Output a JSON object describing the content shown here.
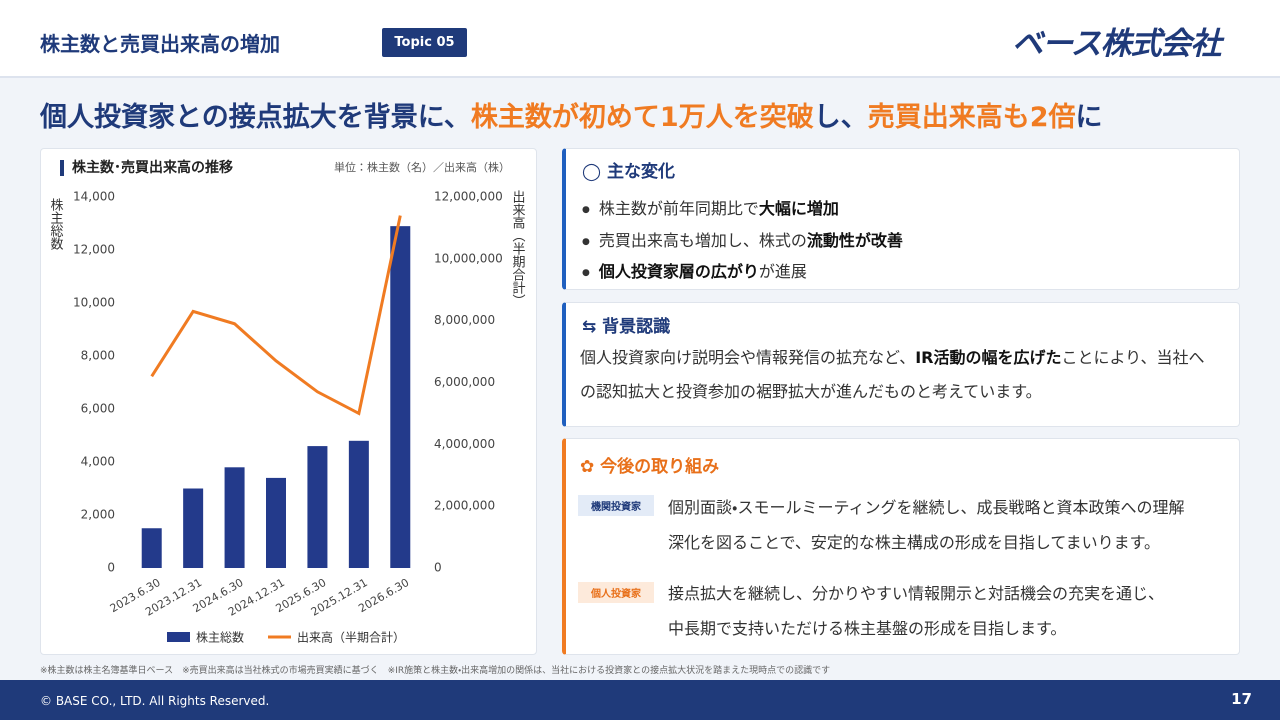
{
  "header": {
    "title": "株主数と売買出来高の増加",
    "topic": "Topic 05",
    "logo": "ベース株式会社"
  },
  "headline": [
    {
      "text": "個人投資家との接点拡大を背景に、",
      "highlight": false
    },
    {
      "text": "株主数が初めて1万人を突破",
      "highlight": true
    },
    {
      "text": "し、",
      "highlight": false
    },
    {
      "text": "売買出来高も2倍",
      "highlight": true
    },
    {
      "text": "に",
      "highlight": false
    }
  ],
  "chart_data": {
    "type": "bar",
    "title": "株主数･売買出来高の推移",
    "subtitle": "単位：株主数（名）／出来高（株）",
    "ylabel": "株主総数",
    "y2label": "出来高（半期合計）",
    "categories": [
      "2023.6.30",
      "2023.12.31",
      "2024.6.30",
      "2024.12.31",
      "2025.6.30",
      "2025.12.31",
      "2026.6.30"
    ],
    "series": [
      {
        "name": "株主総数",
        "type": "bar",
        "color": "#233a8b",
        "values": [
          1500,
          3000,
          3800,
          3400,
          4600,
          4800,
          12900
        ]
      },
      {
        "name": "出来高（半期合計）",
        "type": "line",
        "axis": "y2",
        "color": "#f07b22",
        "values": [
          6200000,
          8300000,
          7900000,
          6700000,
          5700000,
          5000000,
          11400000
        ]
      }
    ],
    "ylim": [
      0,
      14000
    ],
    "yticks": [
      0,
      {
        "value": 2000,
        "label": "2,000"
      },
      {
        "value": 4000,
        "label": "4,000"
      },
      {
        "value": 6000,
        "label": "6,000"
      },
      {
        "value": 8000,
        "label": "8,000"
      },
      {
        "value": 10000,
        "label": "10,000"
      },
      {
        "value": 12000,
        "label": "12,000"
      },
      {
        "value": 14000,
        "label": "14,000"
      }
    ],
    "y2lim": [
      0,
      12000000
    ],
    "y2ticks": [
      0,
      {
        "value": 2000000,
        "label": "2,000,000"
      },
      {
        "value": 4000000,
        "label": "4,000,000"
      },
      {
        "value": 6000000,
        "label": "6,000,000"
      },
      {
        "value": 8000000,
        "label": "8,000,000"
      },
      {
        "value": 10000000,
        "label": "10,000,000"
      },
      {
        "value": 12000000,
        "label": "12,000,000"
      }
    ],
    "grid": false,
    "legend": "bottom"
  },
  "cards": [
    {
      "title": "主な変化",
      "bullets": [
        [
          {
            "text": "株主数が前年同期比で",
            "bold": false
          },
          {
            "text": "大幅に増加",
            "bold": true
          }
        ],
        [
          {
            "text": "売買出来高も増加し、株式の",
            "bold": false
          },
          {
            "text": "流動性が改善",
            "bold": true
          }
        ],
        [
          {
            "text": "個人投資家層の広がり",
            "bold": true
          },
          {
            "text": "が進展",
            "bold": false
          }
        ]
      ]
    },
    {
      "title": "背景認識",
      "body": [
        {
          "text": "個人投資家向け説明会や情報発信の拡充など、",
          "bold": false
        },
        {
          "text": "IR活動の幅を広げた",
          "bold": true
        },
        {
          "text": "ことにより、当社への認知拡大と投資参加の裾野拡大が進んだものと考えています。",
          "bold": false
        }
      ]
    },
    {
      "title": "今後の取り組み",
      "items": [
        {
          "tag": "機関投資家",
          "lines": [
            "個別面談・スモールミーティングを継続し、成長戦略と資本政策への理解",
            "深化を図ることで、安定的な株主構成の形成を目指してまいります。"
          ]
        },
        {
          "tag": "個人投資家",
          "lines": [
            "接点拡大を継続し、分かりやすい情報開示と対話機会の充実を通じ、",
            "中長期で支持いただける株主基盤の形成を目指します。"
          ]
        }
      ]
    }
  ],
  "footnotes": [
    "※株主数は株主名簿基準日ベース",
    "※売買出来高は当社株式の市場売買実績に基づく",
    "※IR施策と株主数・出来高増加の関係は、当社における投資家との接点拡大状況を踏まえた現時点での認識です"
  ],
  "footer": {
    "copyright": "© BASE CO., LTD. All Rights Reserved.",
    "page": "17"
  }
}
